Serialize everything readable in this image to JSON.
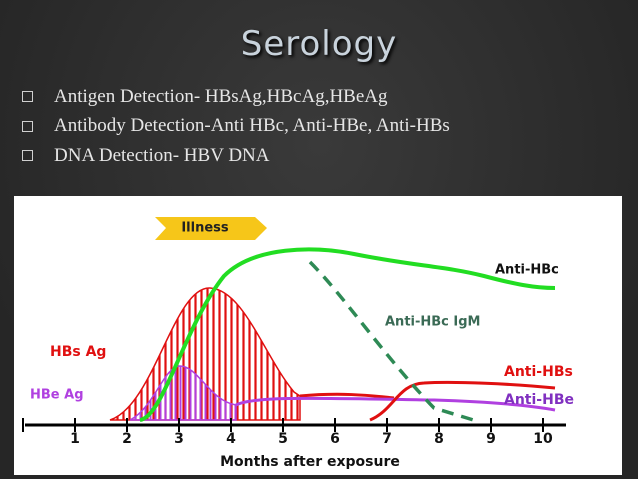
{
  "title": "Serology",
  "bullets": [
    "Antigen Detection- HBsAg,HBcAg,HBeAg",
    "Antibody Detection-Anti HBc, Anti-HBe, Anti-HBs",
    "DNA Detection- HBV DNA"
  ],
  "figure": {
    "illness": "Illness",
    "labels": {
      "anti_hbc": "Anti-HBc",
      "anti_hbc_igm": "Anti-HBc IgM",
      "hbs_ag": "HBs Ag",
      "hbe_ag": "HBe Ag",
      "anti_hbs": "Anti-HBs",
      "anti_hbe": "Anti-HBe"
    },
    "x_ticks": [
      "1",
      "2",
      "3",
      "4",
      "5",
      "6",
      "7",
      "8",
      "9",
      "10"
    ],
    "x_label": "Months after exposure"
  }
}
